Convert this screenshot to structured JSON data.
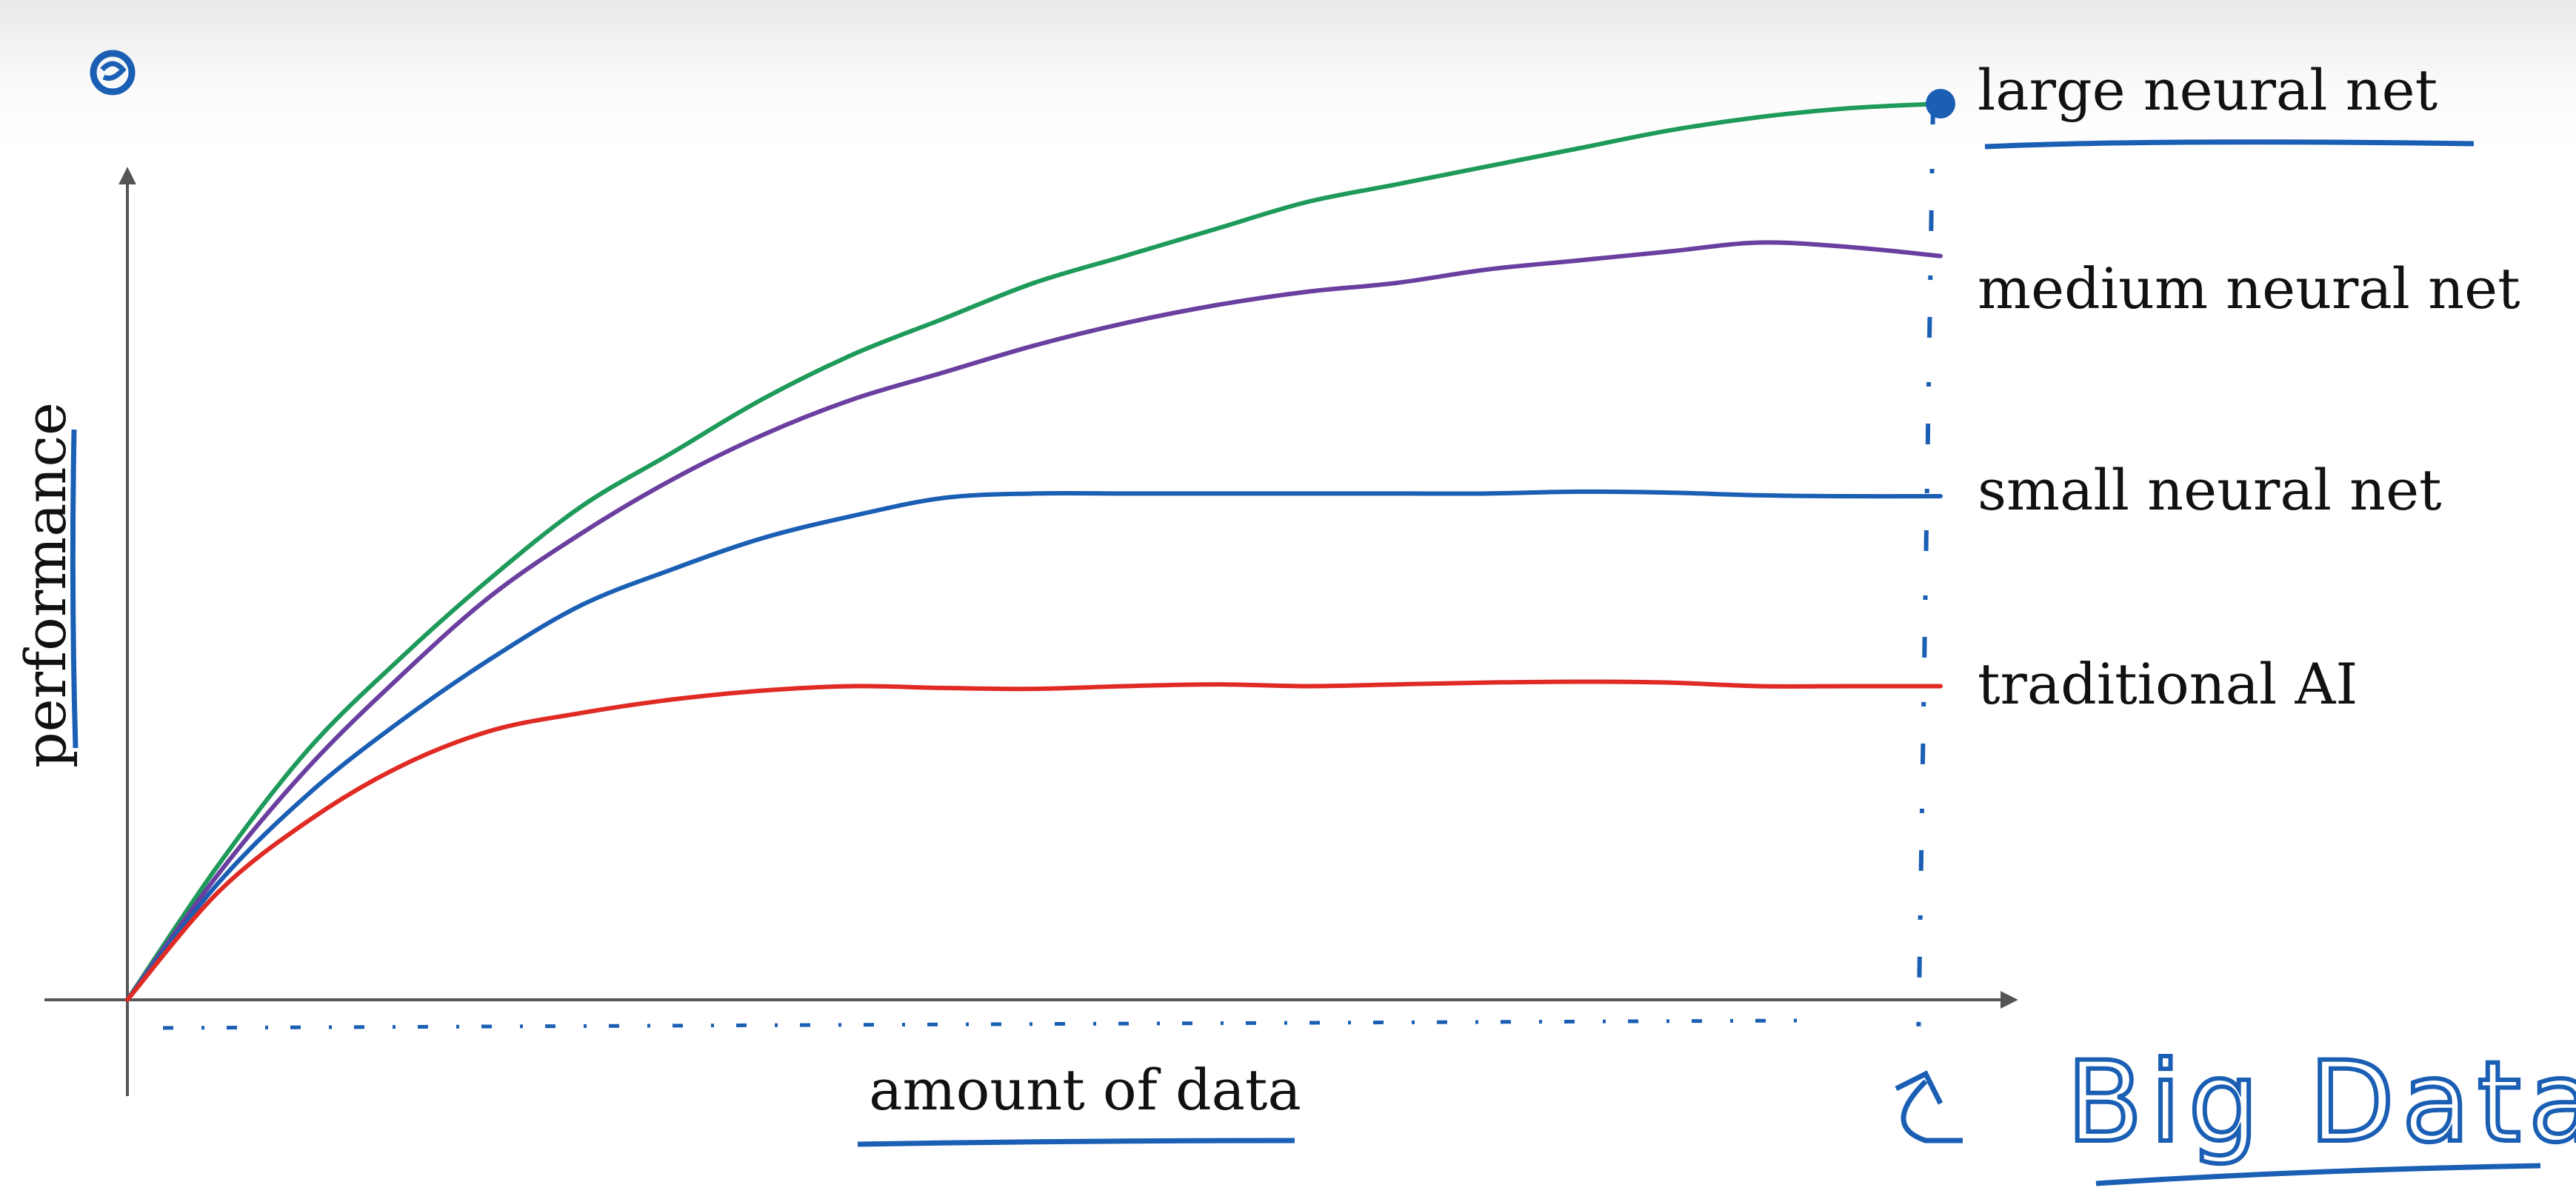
{
  "chart_data": {
    "type": "line",
    "title": "",
    "xlabel": "amount of data",
    "ylabel": "performance",
    "xlim": [
      0,
      1
    ],
    "ylim": [
      0,
      1
    ],
    "grid": false,
    "legend": "labels at line ends",
    "x": [
      0,
      0.05,
      0.1,
      0.15,
      0.2,
      0.25,
      0.3,
      0.35,
      0.4,
      0.45,
      0.5,
      0.55,
      0.6,
      0.65,
      0.7,
      0.75,
      0.8,
      0.85,
      0.9,
      0.95,
      1.0
    ],
    "series": [
      {
        "name": "large neural net",
        "color": "#1e9a5a",
        "values": [
          0,
          0.15,
          0.28,
          0.38,
          0.47,
          0.55,
          0.61,
          0.67,
          0.72,
          0.76,
          0.8,
          0.83,
          0.86,
          0.89,
          0.91,
          0.93,
          0.95,
          0.97,
          0.985,
          0.995,
          1.0
        ]
      },
      {
        "name": "medium neural net",
        "color": "#6a3fa0",
        "values": [
          0,
          0.14,
          0.26,
          0.36,
          0.45,
          0.52,
          0.58,
          0.63,
          0.67,
          0.7,
          0.73,
          0.755,
          0.775,
          0.79,
          0.8,
          0.815,
          0.825,
          0.835,
          0.845,
          0.84,
          0.83
        ]
      },
      {
        "name": "small neural net",
        "color": "#1a5fb4",
        "values": [
          0,
          0.13,
          0.23,
          0.31,
          0.38,
          0.44,
          0.48,
          0.515,
          0.54,
          0.56,
          0.565,
          0.565,
          0.565,
          0.565,
          0.565,
          0.565,
          0.567,
          0.566,
          0.563,
          0.562,
          0.562
        ]
      },
      {
        "name": "traditional AI",
        "color": "#e02a24",
        "values": [
          0,
          0.12,
          0.2,
          0.26,
          0.3,
          0.32,
          0.335,
          0.345,
          0.35,
          0.348,
          0.347,
          0.35,
          0.352,
          0.35,
          0.352,
          0.354,
          0.355,
          0.354,
          0.35,
          0.35,
          0.35
        ]
      }
    ],
    "annotations": [
      {
        "text": "Big Data",
        "style": "handwritten",
        "color": "#1a5fb4"
      }
    ]
  },
  "colors": {
    "axis": "#555555",
    "annotation": "#1a5fb4"
  },
  "icons": {
    "corner": "pen-cursor-icon",
    "endpoint": "highlight-dot-icon"
  }
}
